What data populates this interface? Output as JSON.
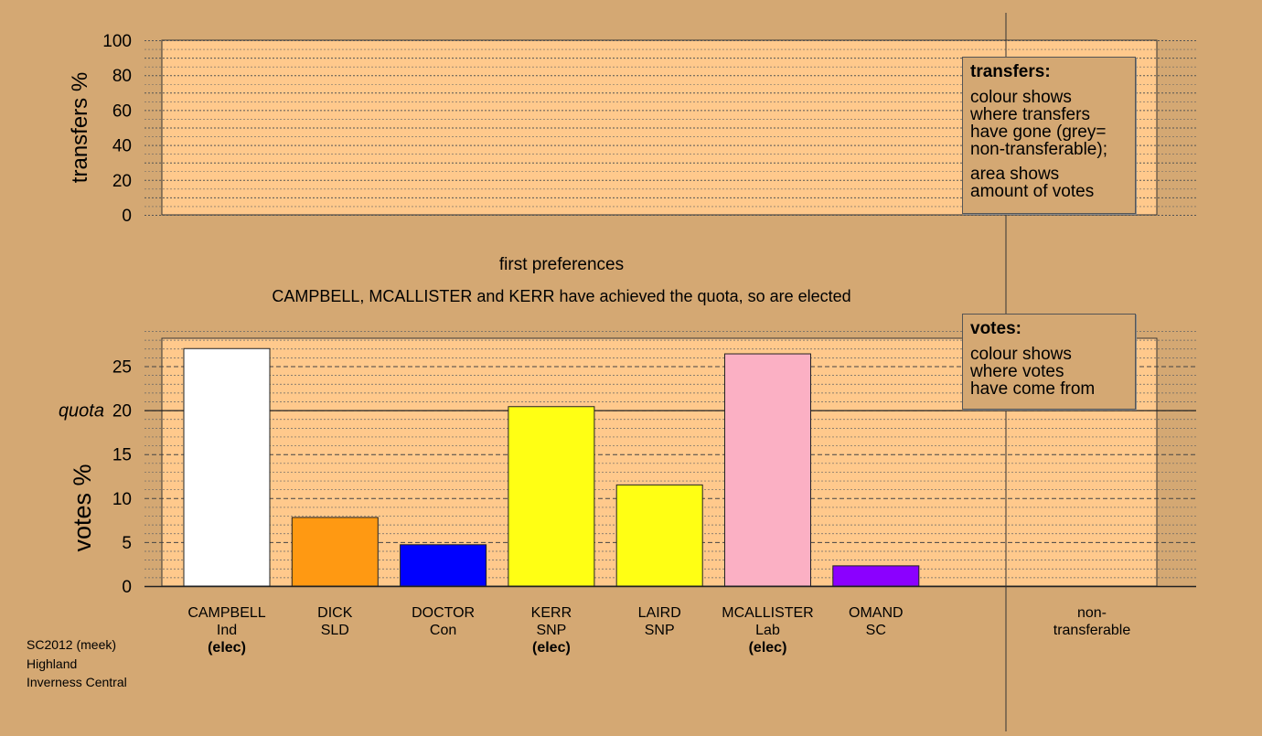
{
  "chart_data": [
    {
      "type": "bar",
      "title": "",
      "ylabel": "transfers %",
      "ylim": [
        0,
        100
      ],
      "yticks": [
        0,
        20,
        40,
        60,
        80,
        100
      ],
      "categories": [],
      "values": [],
      "grid": true
    },
    {
      "type": "bar",
      "title": "first preferences",
      "subtitle": "CAMPBELL, MCALLISTER and KERR have achieved the quota, so are elected",
      "ylabel": "votes %",
      "ylim": [
        0,
        28.5
      ],
      "yticks": [
        0,
        5,
        10,
        15,
        20,
        25
      ],
      "quota": 20,
      "quota_label": "quota",
      "categories": [
        "CAMPBELL",
        "DICK",
        "DOCTOR",
        "KERR",
        "LAIRD",
        "MCALLISTER",
        "OMAND",
        "non-transferable"
      ],
      "parties": [
        "Ind",
        "SLD",
        "Con",
        "SNP",
        "SNP",
        "Lab",
        "SC",
        ""
      ],
      "elected": [
        true,
        false,
        false,
        true,
        false,
        true,
        false,
        false
      ],
      "elected_label": "(elec)",
      "values": [
        27.0,
        7.8,
        4.7,
        20.4,
        11.5,
        26.4,
        2.3,
        0
      ],
      "colors": [
        "#ffffff",
        "#ff9912",
        "#0000ff",
        "#ffff14",
        "#ffff14",
        "#fbb0c4",
        "#8b00ff",
        "#d4a873"
      ],
      "grid": true
    }
  ],
  "legends": {
    "transfers": {
      "title": "transfers:",
      "lines": [
        "colour shows",
        "where transfers",
        "have gone (grey=",
        "non-transferable);"
      ],
      "lines2": [
        "area shows",
        "amount of votes"
      ]
    },
    "votes": {
      "title": "votes:",
      "lines": [
        "colour shows",
        "where votes",
        "have come from"
      ]
    }
  },
  "source": {
    "line1": "SC2012 (meek)",
    "line2": "Highland",
    "line3": "Inverness Central"
  },
  "colors": {
    "background": "#d4a873",
    "plot_area": "#ffc98c"
  }
}
